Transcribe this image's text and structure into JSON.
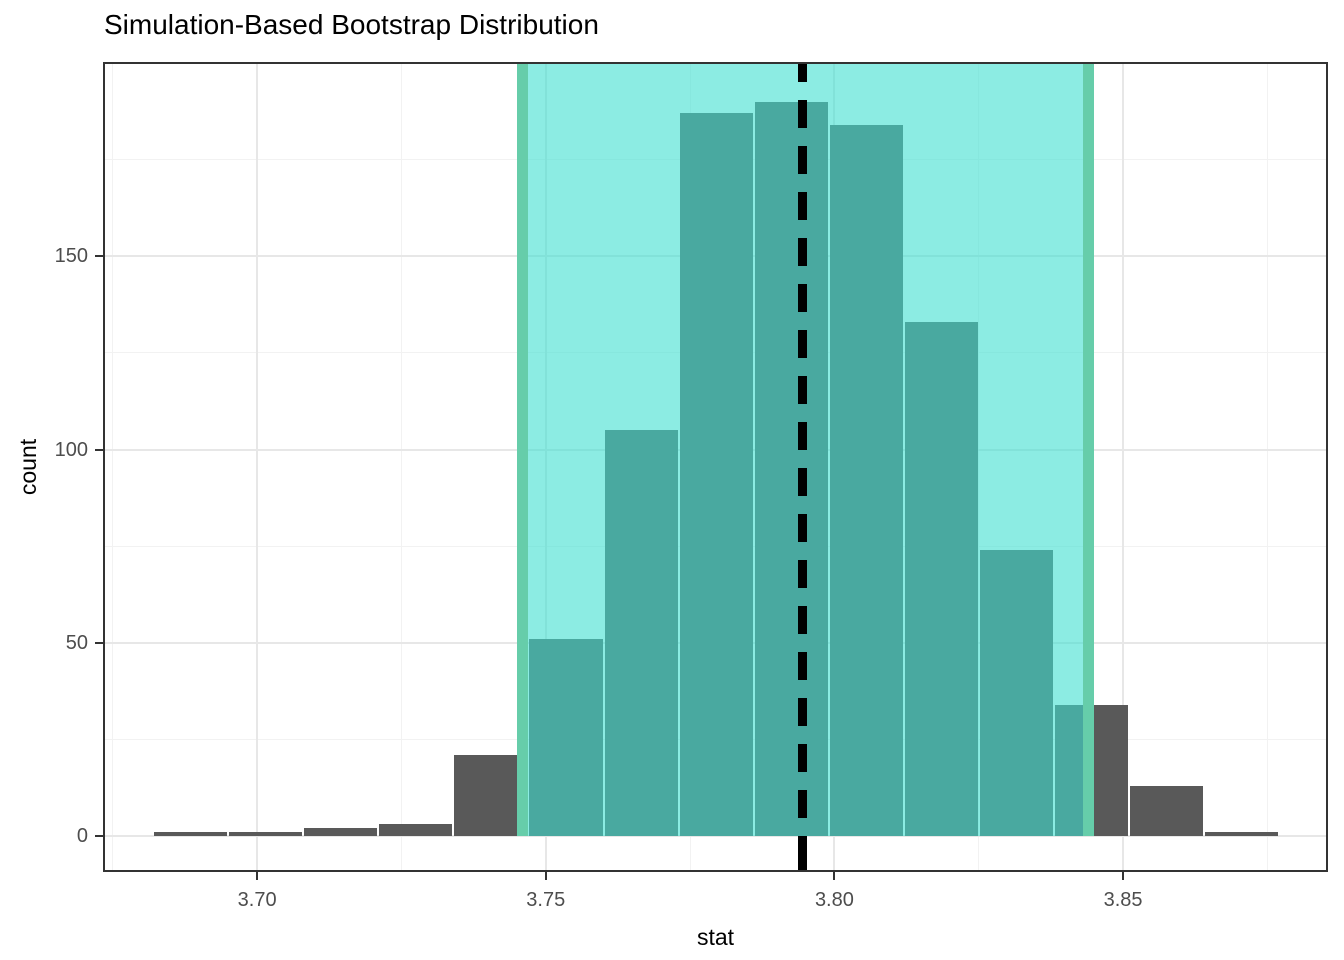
{
  "chart_data": {
    "type": "bar",
    "subtype": "histogram",
    "title": "Simulation-Based Bootstrap Distribution",
    "xlabel": "stat",
    "ylabel": "count",
    "bin_start": 3.682,
    "bin_width": 0.013,
    "counts": [
      1,
      1,
      2,
      3,
      21,
      51,
      105,
      187,
      190,
      184,
      133,
      74,
      34,
      13,
      1
    ],
    "total_reps": 1000,
    "xlim": [
      3.6733,
      3.8855
    ],
    "ylim": [
      -9.3,
      200.3
    ],
    "x_ticks": [
      {
        "value": 3.7,
        "label": "3.70"
      },
      {
        "value": 3.75,
        "label": "3.75"
      },
      {
        "value": 3.8,
        "label": "3.80"
      },
      {
        "value": 3.85,
        "label": "3.85"
      }
    ],
    "x_minor": [
      3.675,
      3.725,
      3.775,
      3.825,
      3.875
    ],
    "y_ticks": [
      {
        "value": 0,
        "label": "0"
      },
      {
        "value": 50,
        "label": "50"
      },
      {
        "value": 100,
        "label": "100"
      },
      {
        "value": 150,
        "label": "150"
      }
    ],
    "y_minor": [
      25,
      75,
      125,
      175
    ],
    "confidence_interval": {
      "lower": 3.746,
      "upper": 3.844
    },
    "point_estimate": 3.7945,
    "grid": true,
    "legend": "none",
    "colors": {
      "bar_fill": "#595959",
      "shade_fill": "#40E0D0",
      "shade_alpha": 0.6,
      "ci_endpoint_line": "#66CDAA",
      "point_estimate_line": "#000000",
      "grid_major": "#e7e7e7",
      "grid_minor": "#f2f2f2",
      "panel_border": "#333333",
      "tick_text": "#4d4d4d",
      "title_text": "#000000"
    }
  }
}
